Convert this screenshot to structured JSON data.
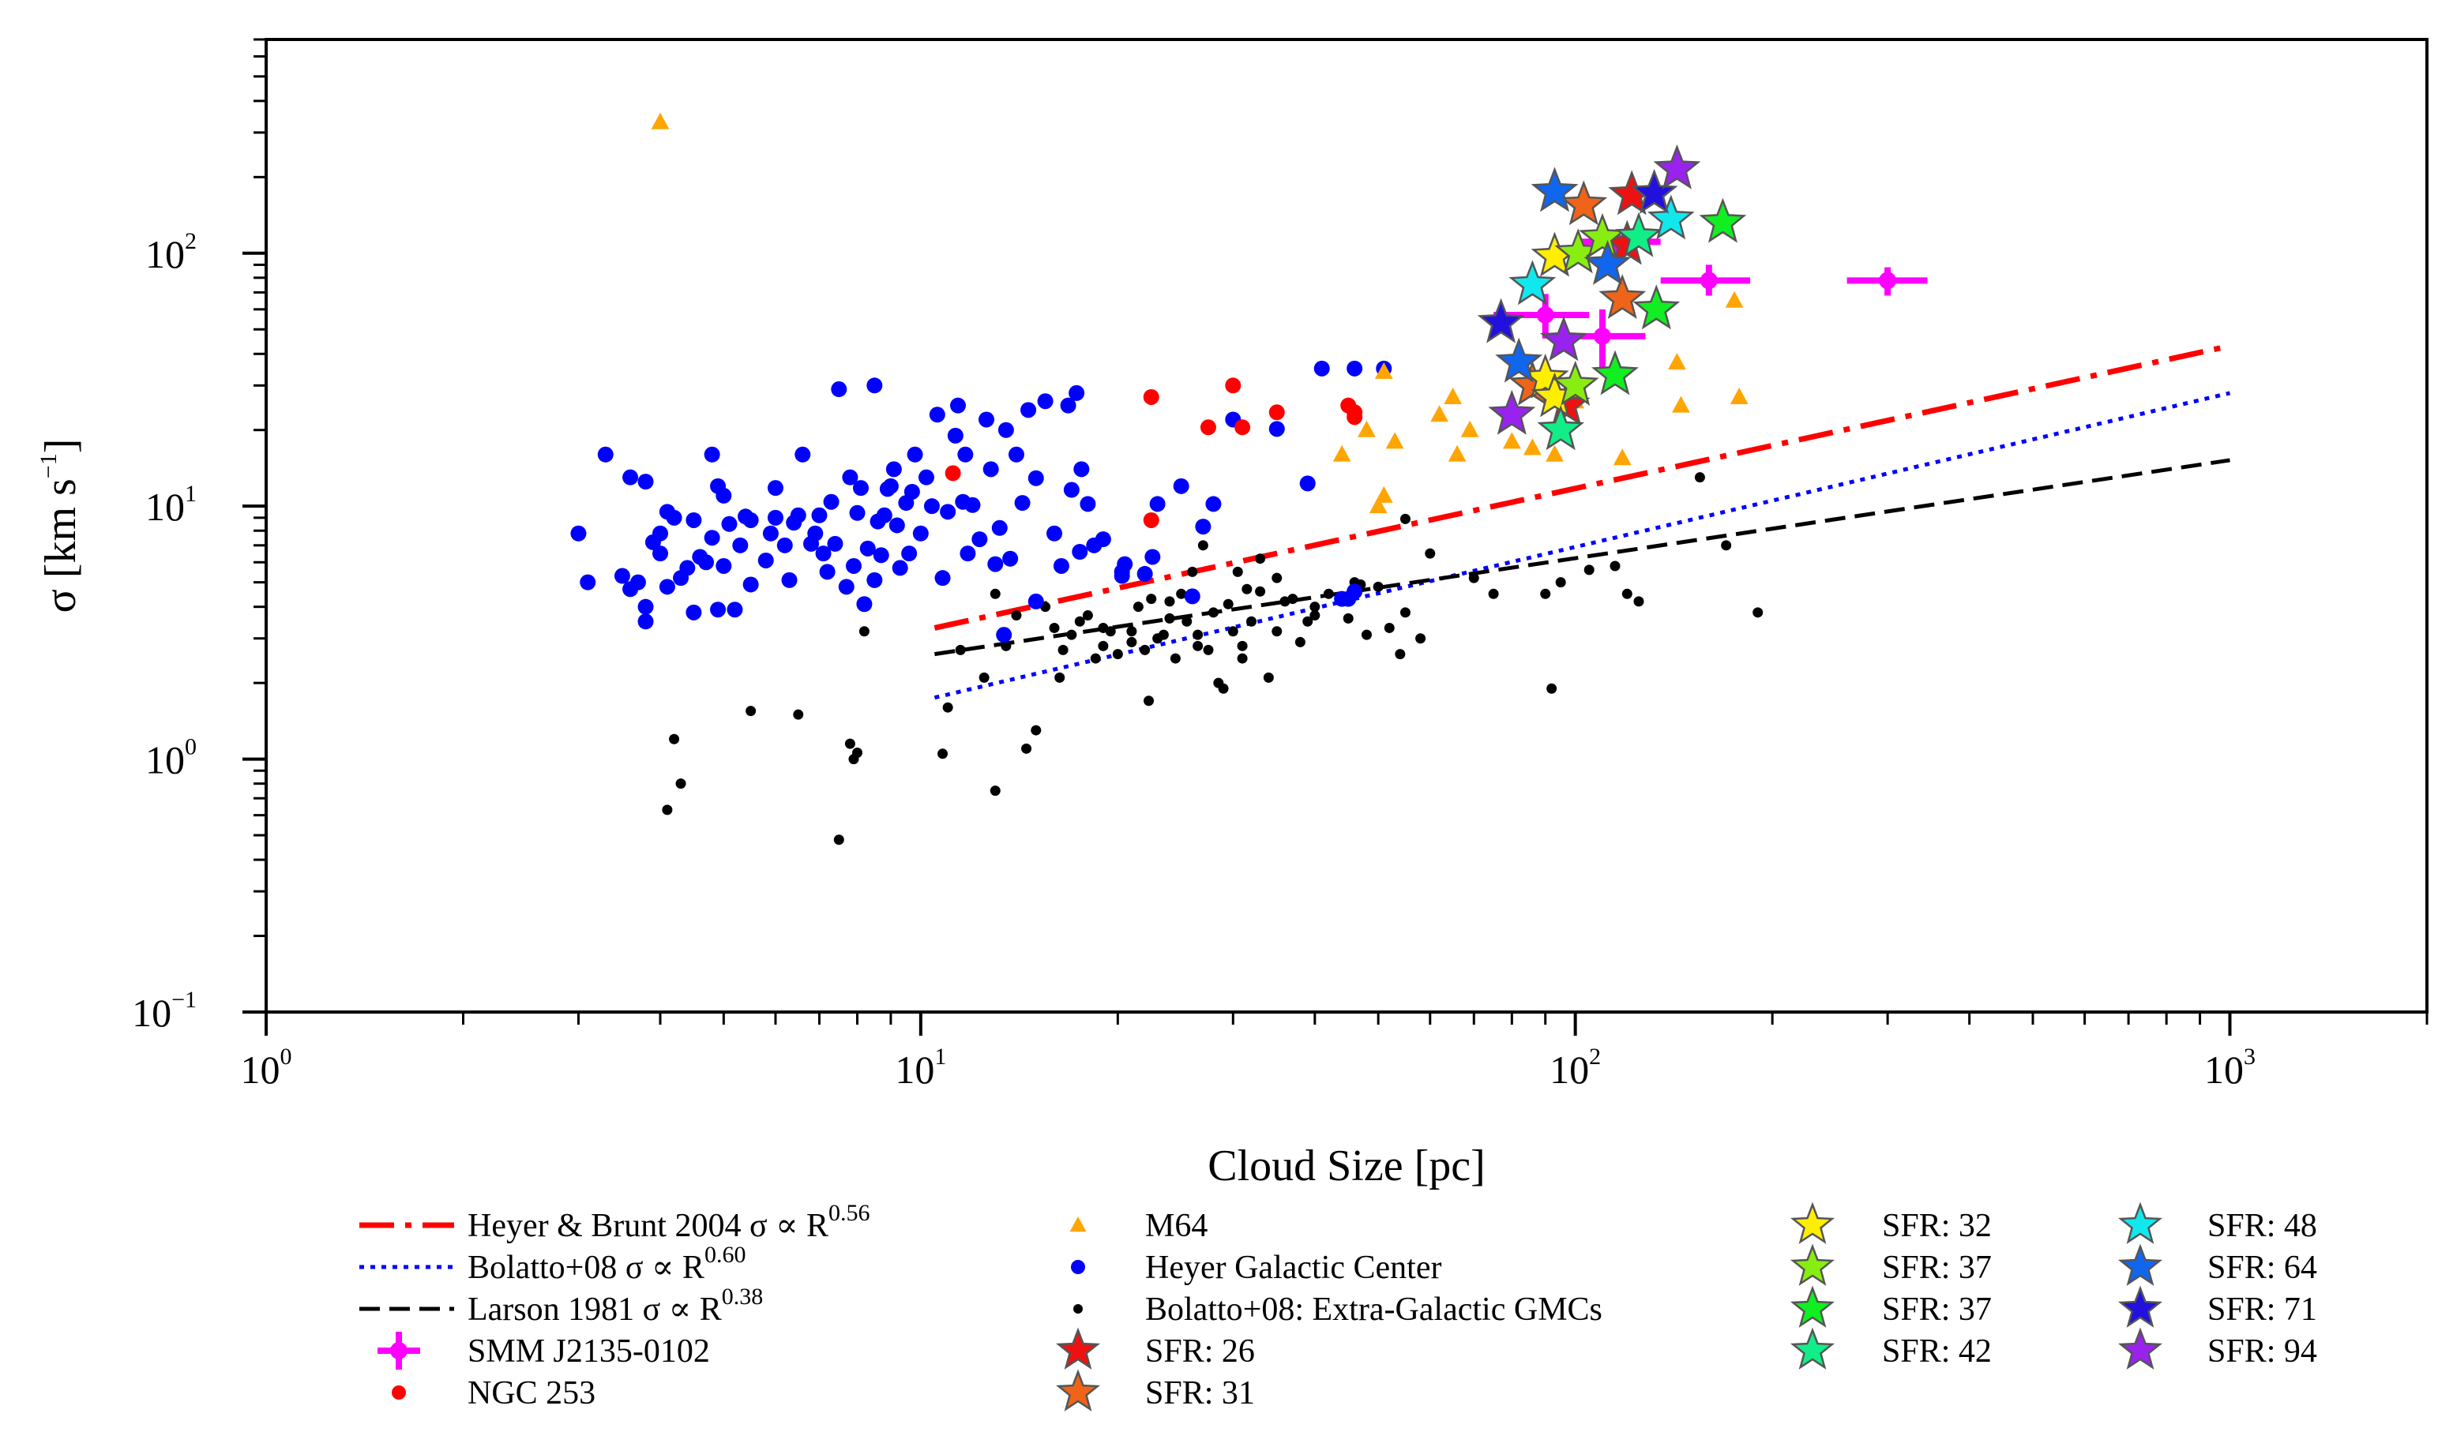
{
  "chart_data": {
    "type": "scatter",
    "title": "",
    "xlabel": "Cloud Size [pc]",
    "ylabel_symbol": "σ",
    "ylabel_unit_open": "[km s",
    "ylabel_unit_exp": "−1",
    "ylabel_unit_close": "]",
    "xscale": "log",
    "yscale": "log",
    "xlim": [
      1,
      2000
    ],
    "ylim": [
      0.1,
      700
    ],
    "grid": false,
    "legend_placement": "below plot",
    "x_ticks": [
      {
        "value": 1,
        "base": "10",
        "exp": "0"
      },
      {
        "value": 10,
        "base": "10",
        "exp": "1"
      },
      {
        "value": 100,
        "base": "10",
        "exp": "2"
      },
      {
        "value": 1000,
        "base": "10",
        "exp": "3"
      }
    ],
    "y_ticks": [
      {
        "value": 0.1,
        "base": "10",
        "exp": "−1"
      },
      {
        "value": 1,
        "base": "10",
        "exp": "0"
      },
      {
        "value": 10,
        "base": "10",
        "exp": "1"
      },
      {
        "value": 100,
        "base": "10",
        "exp": "2"
      }
    ],
    "lines": [
      {
        "key": "heyer",
        "label": "Heyer & Brunt 2004 σ ∝ R",
        "exp_label": "0.56",
        "color": "#ff0000",
        "dash": "44,14,8,14",
        "width": 7,
        "x": [
          10.5,
          1000
        ],
        "y": [
          3.3,
          43
        ]
      },
      {
        "key": "bolatto",
        "label": "Bolatto+08 σ ∝ R",
        "exp_label": "0.60",
        "color": "#0000ff",
        "dash": "6,8",
        "width": 5,
        "x": [
          10.5,
          1000
        ],
        "y": [
          1.75,
          28
        ]
      },
      {
        "key": "larson",
        "label": "Larson 1981 σ ∝ R",
        "exp_label": "0.38",
        "color": "#000000",
        "dash": "26,12",
        "width": 5,
        "x": [
          10.5,
          1000
        ],
        "y": [
          2.6,
          15.2
        ]
      }
    ],
    "smm": {
      "label": "SMM J2135-0102",
      "color": "#ff00ff",
      "points": [
        {
          "x": 90,
          "y": 57,
          "xerr": [
            75,
            105
          ],
          "yerr": [
            46,
            69
          ]
        },
        {
          "x": 110,
          "y": 47,
          "xerr": [
            92,
            128
          ],
          "yerr": [
            35,
            60
          ]
        },
        {
          "x": 115,
          "y": 111,
          "xerr": [
            100,
            135
          ],
          "yerr": [
            100,
            120
          ]
        },
        {
          "x": 160,
          "y": 78,
          "xerr": [
            135,
            185
          ],
          "yerr": [
            68,
            90
          ]
        },
        {
          "x": 300,
          "y": 78,
          "xerr": [
            260,
            345
          ],
          "yerr": [
            68,
            88
          ]
        }
      ]
    },
    "ngc253": {
      "label": "NGC 253",
      "color": "#ff0000",
      "points": [
        [
          11.2,
          13.5
        ],
        [
          22.5,
          27
        ],
        [
          22.5,
          8.8
        ],
        [
          27.5,
          20.5
        ],
        [
          30,
          30
        ],
        [
          31,
          20.5
        ],
        [
          35,
          23.5
        ],
        [
          45,
          25
        ],
        [
          46,
          23.5
        ],
        [
          46,
          22.5
        ]
      ]
    },
    "m64": {
      "label": "M64",
      "color": "#ffa500",
      "points": [
        [
          4,
          330
        ],
        [
          51,
          34
        ],
        [
          48,
          20
        ],
        [
          44,
          16
        ],
        [
          51,
          11
        ],
        [
          53,
          18
        ],
        [
          50,
          10
        ],
        [
          62,
          23
        ],
        [
          65,
          27
        ],
        [
          69,
          20
        ],
        [
          66,
          16
        ],
        [
          80,
          18
        ],
        [
          86,
          17
        ],
        [
          93,
          16
        ],
        [
          96,
          21
        ],
        [
          100,
          26
        ],
        [
          118,
          15.5
        ],
        [
          143,
          37
        ],
        [
          145,
          25
        ],
        [
          175,
          65
        ],
        [
          178,
          27
        ]
      ]
    },
    "heyer_gc": {
      "label": "Heyer Galactic Center",
      "color": "#0000ff",
      "points": [
        [
          3,
          7.8
        ],
        [
          3.1,
          5
        ],
        [
          3.3,
          16
        ],
        [
          3.5,
          5.3
        ],
        [
          3.6,
          4.7
        ],
        [
          3.6,
          13
        ],
        [
          3.7,
          5
        ],
        [
          3.8,
          12.5
        ],
        [
          3.8,
          3.5
        ],
        [
          3.8,
          4
        ],
        [
          3.9,
          7.2
        ],
        [
          4,
          7.8
        ],
        [
          4,
          6.5
        ],
        [
          4.1,
          9.5
        ],
        [
          4.1,
          4.8
        ],
        [
          4.2,
          9
        ],
        [
          4.3,
          5.2
        ],
        [
          4.4,
          5.7
        ],
        [
          4.5,
          3.8
        ],
        [
          4.5,
          8.8
        ],
        [
          4.6,
          6.3
        ],
        [
          4.7,
          6
        ],
        [
          4.8,
          7.5
        ],
        [
          4.8,
          16
        ],
        [
          4.9,
          12
        ],
        [
          4.9,
          3.9
        ],
        [
          5,
          11
        ],
        [
          5,
          5.8
        ],
        [
          5.1,
          8.5
        ],
        [
          5.2,
          3.9
        ],
        [
          5.3,
          7
        ],
        [
          5.4,
          9.1
        ],
        [
          5.5,
          8.8
        ],
        [
          5.5,
          4.9
        ],
        [
          5.8,
          6.1
        ],
        [
          5.9,
          7.8
        ],
        [
          6,
          9
        ],
        [
          6,
          11.8
        ],
        [
          6.2,
          7
        ],
        [
          6.3,
          5.1
        ],
        [
          6.4,
          8.6
        ],
        [
          6.5,
          9.2
        ],
        [
          6.6,
          16
        ],
        [
          6.8,
          7.1
        ],
        [
          6.9,
          7.8
        ],
        [
          7,
          9.2
        ],
        [
          7.1,
          6.5
        ],
        [
          7.2,
          5.5
        ],
        [
          7.3,
          10.4
        ],
        [
          7.4,
          7.1
        ],
        [
          7.5,
          29
        ],
        [
          7.7,
          4.8
        ],
        [
          7.8,
          13
        ],
        [
          7.9,
          5.8
        ],
        [
          8,
          9.4
        ],
        [
          8.1,
          11.8
        ],
        [
          8.2,
          4.1
        ],
        [
          8.3,
          6.8
        ],
        [
          8.5,
          30
        ],
        [
          8.5,
          5.1
        ],
        [
          8.6,
          8.7
        ],
        [
          8.7,
          6.4
        ],
        [
          8.8,
          9.2
        ],
        [
          8.9,
          11.7
        ],
        [
          9,
          12
        ],
        [
          9.1,
          14
        ],
        [
          9.2,
          8.4
        ],
        [
          9.3,
          5.7
        ],
        [
          9.5,
          10.3
        ],
        [
          9.6,
          6.5
        ],
        [
          9.7,
          11.4
        ],
        [
          9.8,
          16
        ],
        [
          10,
          7.8
        ],
        [
          10.2,
          13
        ],
        [
          10.4,
          10
        ],
        [
          10.6,
          23
        ],
        [
          10.8,
          5.2
        ],
        [
          11,
          9.5
        ],
        [
          11.3,
          19
        ],
        [
          11.4,
          25
        ],
        [
          11.6,
          10.4
        ],
        [
          11.7,
          16
        ],
        [
          11.8,
          6.5
        ],
        [
          12,
          10.1
        ],
        [
          12.3,
          7.4
        ],
        [
          12.6,
          22
        ],
        [
          12.8,
          14
        ],
        [
          13,
          5.9
        ],
        [
          13.2,
          8.2
        ],
        [
          13.5,
          20
        ],
        [
          13.7,
          6.2
        ],
        [
          14,
          16
        ],
        [
          14.3,
          10.3
        ],
        [
          14.6,
          24
        ],
        [
          15,
          12.9
        ],
        [
          15.5,
          26
        ],
        [
          16,
          7.8
        ],
        [
          16.4,
          5.8
        ],
        [
          16.8,
          25
        ],
        [
          17,
          11.6
        ],
        [
          17.3,
          28
        ],
        [
          17.6,
          14
        ],
        [
          18,
          10.2
        ],
        [
          18.4,
          7
        ],
        [
          19,
          7.4
        ],
        [
          13.4,
          3.1
        ],
        [
          17.5,
          6.6
        ],
        [
          15,
          4.2
        ],
        [
          22,
          5.4
        ],
        [
          20.3,
          5.5
        ],
        [
          20.3,
          5.3
        ],
        [
          20.5,
          5.9
        ],
        [
          22.6,
          6.3
        ],
        [
          26,
          4.4
        ],
        [
          23,
          10.2
        ],
        [
          25,
          12
        ],
        [
          28,
          10.2
        ],
        [
          27,
          8.3
        ],
        [
          30,
          22
        ],
        [
          35,
          20.2
        ],
        [
          39,
          12.3
        ],
        [
          41,
          35
        ],
        [
          44,
          4.3
        ],
        [
          45,
          4.3
        ],
        [
          46,
          35
        ],
        [
          46,
          4.6
        ],
        [
          51,
          35
        ]
      ]
    },
    "bolatto_xgal": {
      "label": "Bolatto+08: Extra-Galactic GMCs",
      "color": "#000000",
      "points": [
        [
          4.1,
          0.63
        ],
        [
          4.2,
          1.2
        ],
        [
          4.3,
          0.8
        ],
        [
          5.5,
          1.55
        ],
        [
          6.5,
          1.5
        ],
        [
          7.5,
          0.48
        ],
        [
          7.8,
          1.15
        ],
        [
          7.9,
          1
        ],
        [
          8,
          1.06
        ],
        [
          8.2,
          3.2
        ],
        [
          10.8,
          1.05
        ],
        [
          11,
          1.6
        ],
        [
          11.5,
          2.7
        ],
        [
          12.5,
          2.1
        ],
        [
          13,
          0.75
        ],
        [
          13,
          4.5
        ],
        [
          13.5,
          2.8
        ],
        [
          14,
          3.7
        ],
        [
          14.5,
          1.1
        ],
        [
          15,
          1.3
        ],
        [
          15.5,
          4
        ],
        [
          16,
          3.3
        ],
        [
          16.3,
          2.1
        ],
        [
          16.5,
          2.7
        ],
        [
          17,
          3.1
        ],
        [
          17.5,
          3.5
        ],
        [
          18,
          3.7
        ],
        [
          18.5,
          2.5
        ],
        [
          19,
          2.8
        ],
        [
          19.5,
          3.2
        ],
        [
          20,
          2.6
        ],
        [
          21,
          3.2
        ],
        [
          21.5,
          4
        ],
        [
          22,
          2.7
        ],
        [
          22.3,
          1.7
        ],
        [
          22.5,
          4.3
        ],
        [
          23,
          3
        ],
        [
          23.5,
          3.1
        ],
        [
          24,
          3.6
        ],
        [
          24.5,
          2.5
        ],
        [
          25,
          4.5
        ],
        [
          25.5,
          3.5
        ],
        [
          26,
          5.5
        ],
        [
          26.5,
          3.1
        ],
        [
          27,
          7
        ],
        [
          27.5,
          2.7
        ],
        [
          28,
          3.8
        ],
        [
          28.5,
          2
        ],
        [
          29,
          1.9
        ],
        [
          29.5,
          4.1
        ],
        [
          30,
          3.2
        ],
        [
          30.5,
          5.5
        ],
        [
          31,
          2.5
        ],
        [
          31.5,
          4.7
        ],
        [
          32,
          3.5
        ],
        [
          33,
          6.2
        ],
        [
          34,
          2.1
        ],
        [
          35,
          3.2
        ],
        [
          36,
          4.2
        ],
        [
          37,
          4.3
        ],
        [
          38,
          2.9
        ],
        [
          39,
          3.5
        ],
        [
          40,
          3.7
        ],
        [
          42,
          4.5
        ],
        [
          44,
          4.4
        ],
        [
          45,
          3.6
        ],
        [
          48,
          3.1
        ],
        [
          50,
          4.8
        ],
        [
          52,
          3.3
        ],
        [
          55,
          3.8
        ],
        [
          58,
          3
        ],
        [
          60,
          6.5
        ],
        [
          70,
          5.2
        ],
        [
          75,
          4.5
        ],
        [
          90,
          4.5
        ],
        [
          92,
          1.9
        ],
        [
          95,
          5
        ],
        [
          105,
          5.6
        ],
        [
          115,
          5.8
        ],
        [
          120,
          4.5
        ],
        [
          125,
          4.2
        ],
        [
          155,
          13
        ],
        [
          170,
          7
        ],
        [
          190,
          3.8
        ],
        [
          55,
          8.9
        ],
        [
          54,
          2.6
        ],
        [
          46,
          5
        ],
        [
          47,
          4.9
        ],
        [
          35,
          5.2
        ],
        [
          33,
          4.6
        ],
        [
          40,
          4
        ],
        [
          31,
          2.8
        ],
        [
          26.5,
          2.8
        ],
        [
          24,
          4.2
        ],
        [
          21,
          2.9
        ],
        [
          19,
          3.3
        ]
      ]
    },
    "sfr_series": [
      {
        "label": "SFR: 26",
        "color": "#ee1111",
        "points": [
          [
            122,
            170
          ],
          [
            120,
            108
          ],
          [
            97,
            25
          ]
        ]
      },
      {
        "label": "SFR: 31",
        "color": "#ef6418",
        "points": [
          [
            103,
            155
          ],
          [
            118,
            66
          ],
          [
            86,
            30
          ]
        ]
      },
      {
        "label": "SFR: 32",
        "color": "#ffee00",
        "points": [
          [
            93,
            97
          ],
          [
            90,
            32
          ],
          [
            93,
            27
          ]
        ]
      },
      {
        "label": "SFR: 37",
        "color": "#88ee11",
        "points": [
          [
            101,
            100
          ],
          [
            110,
            115
          ],
          [
            100,
            30
          ]
        ]
      },
      {
        "label": "SFR: 37",
        "color": "#11ee22",
        "points": [
          [
            168,
            132
          ],
          [
            133,
            60
          ],
          [
            115,
            33
          ]
        ]
      },
      {
        "label": "SFR: 42",
        "color": "#11ee88",
        "points": [
          [
            125,
            116
          ],
          [
            95,
            20
          ]
        ]
      },
      {
        "label": "SFR: 48",
        "color": "#11e8ee",
        "points": [
          [
            140,
            136
          ],
          [
            86,
            75
          ]
        ]
      },
      {
        "label": "SFR: 64",
        "color": "#1166ee",
        "points": [
          [
            93,
            175
          ],
          [
            112,
            90
          ],
          [
            82,
            37
          ]
        ]
      },
      {
        "label": "SFR: 71",
        "color": "#2211dd",
        "points": [
          [
            132,
            172
          ],
          [
            77,
            53
          ]
        ]
      },
      {
        "label": "SFR: 94",
        "color": "#9922ee",
        "points": [
          [
            143,
            215
          ],
          [
            96,
            45
          ],
          [
            80,
            23
          ]
        ]
      }
    ]
  }
}
